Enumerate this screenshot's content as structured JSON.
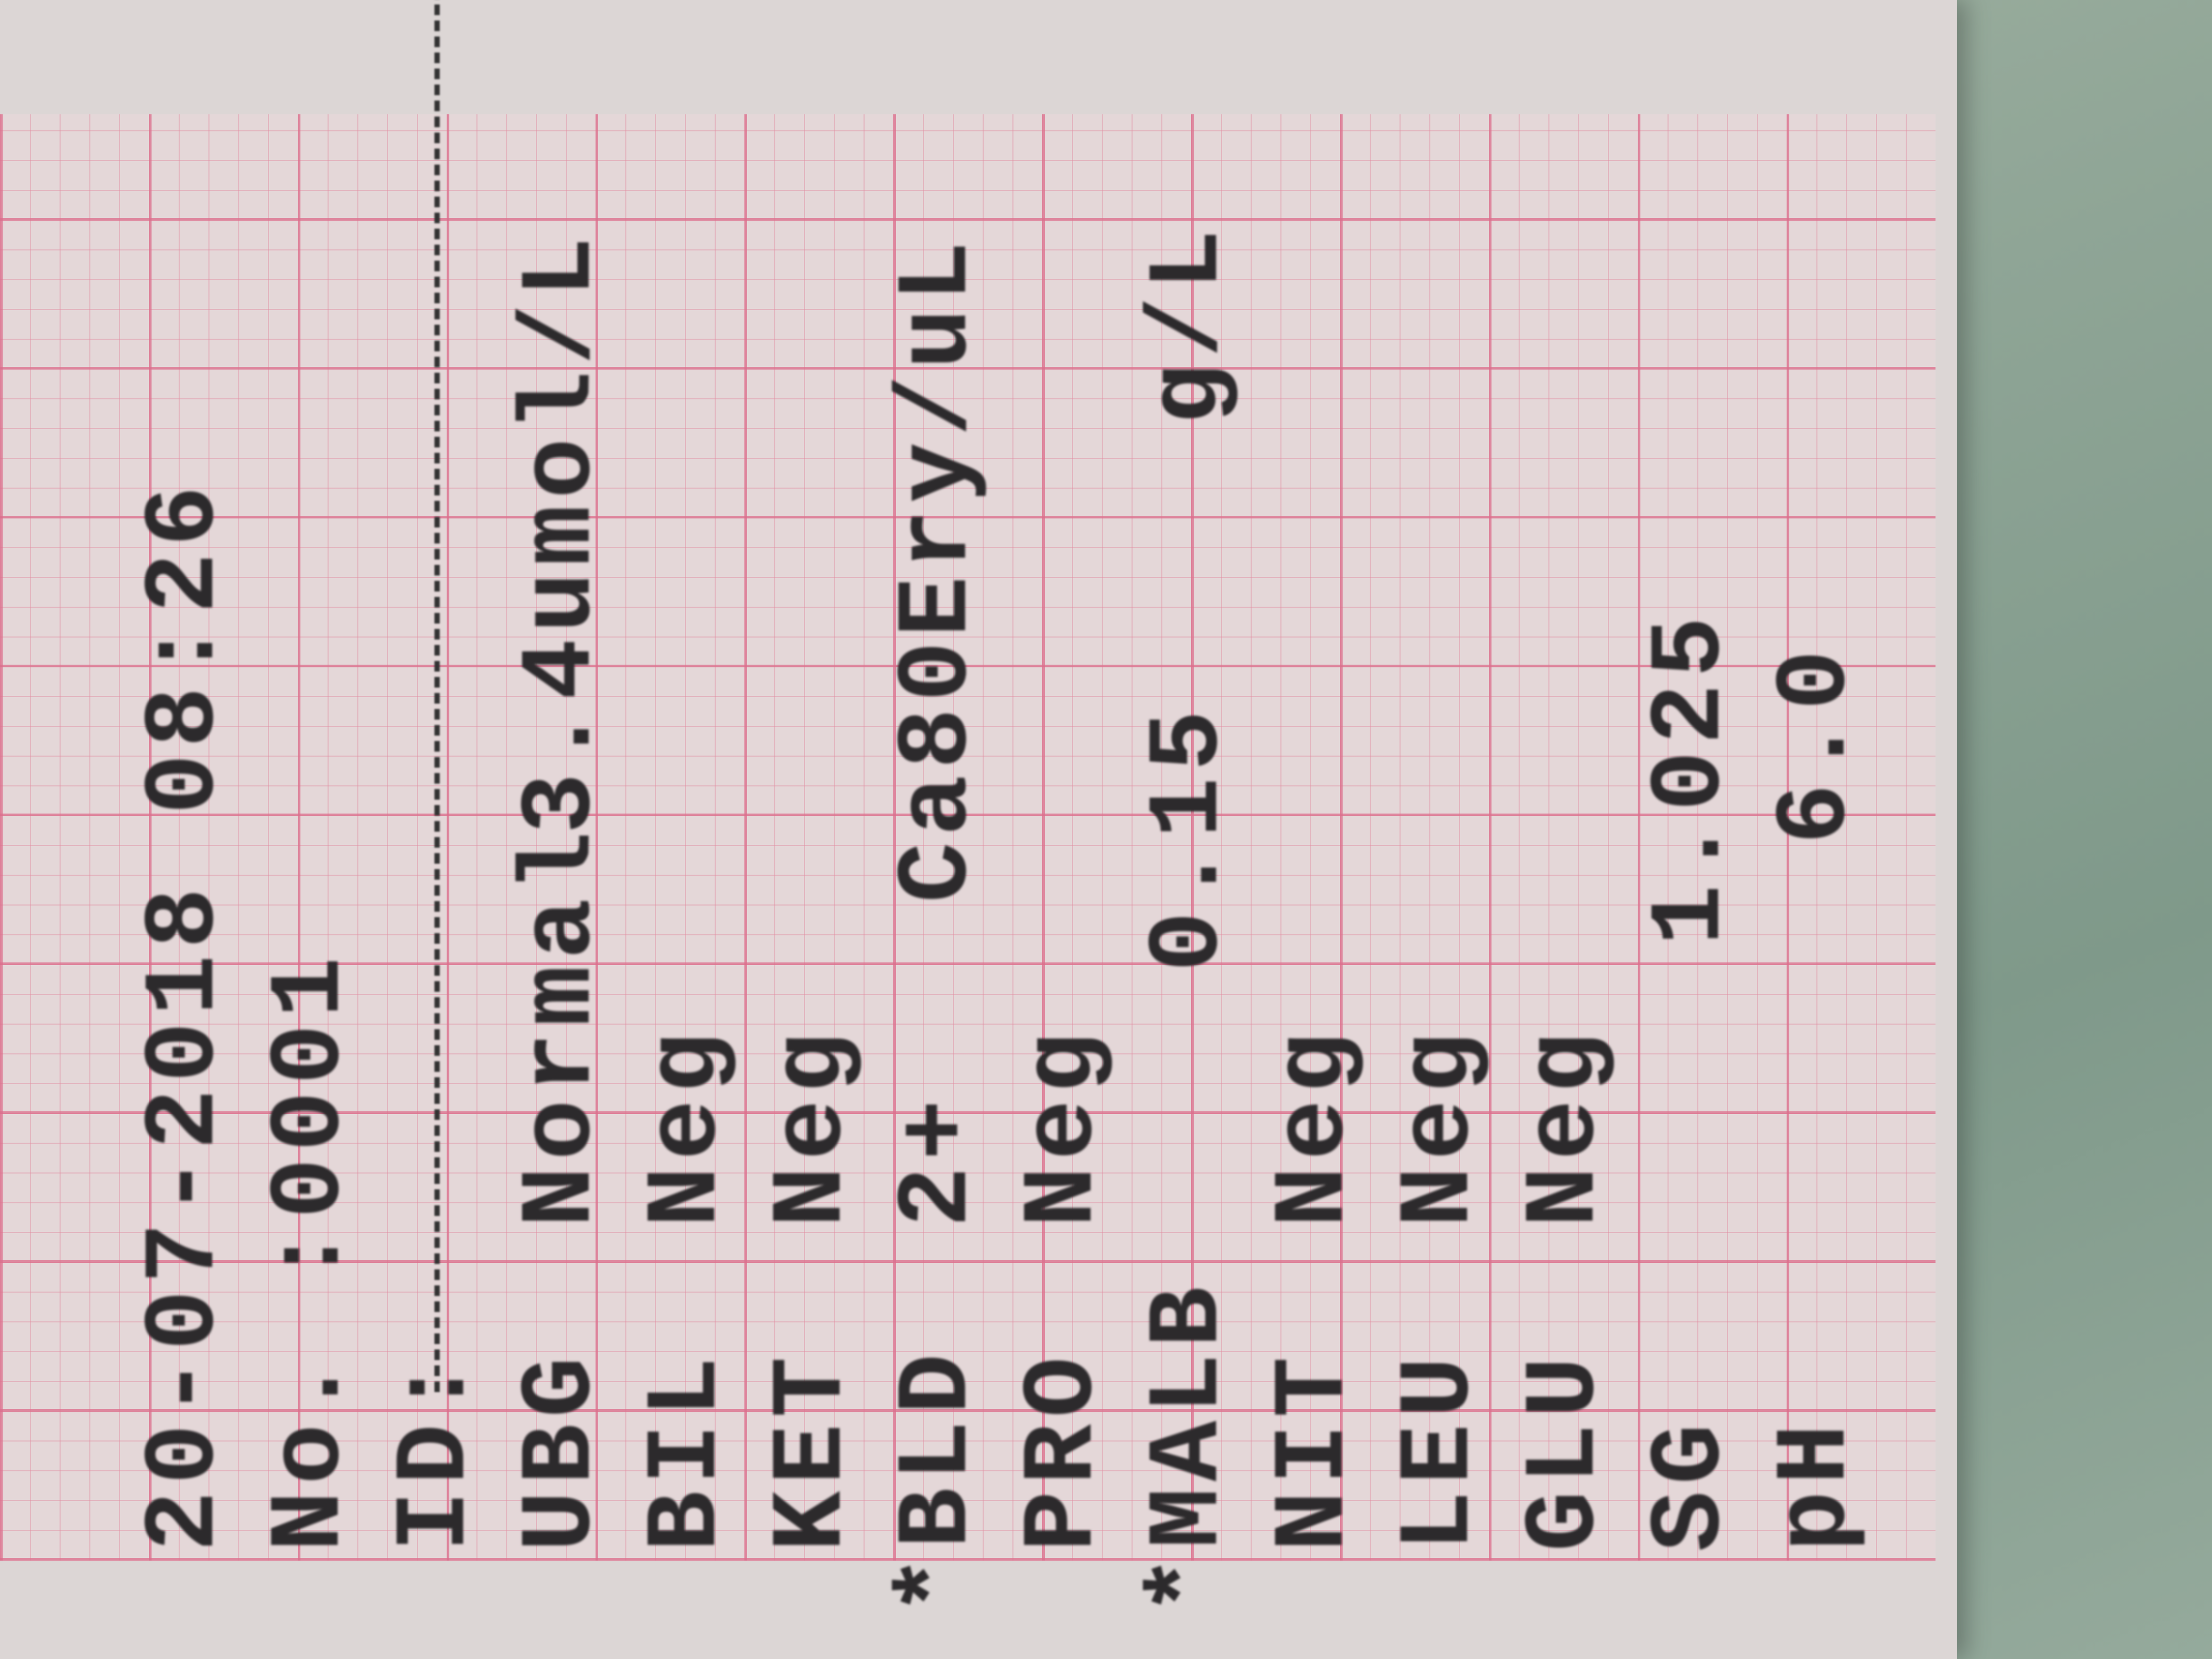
{
  "header": {
    "datetime": "20-07-2018 08:26",
    "number_label": "No.",
    "number_value": ":0001",
    "id_label": "ID:"
  },
  "results": [
    {
      "label": "UBG",
      "value": "Normal",
      "extra": "3.4umol/L",
      "unit": ""
    },
    {
      "label": "BIL",
      "value": "Neg",
      "extra": "",
      "unit": ""
    },
    {
      "label": "KET",
      "value": "Neg",
      "extra": "",
      "unit": ""
    },
    {
      "label": "*BLD",
      "value": "2+",
      "extra": "Ca80",
      "unit": "Ery/uL"
    },
    {
      "label": "PRO",
      "value": "Neg",
      "extra": "",
      "unit": ""
    },
    {
      "label": "*MALB",
      "value": "",
      "extra": "0.15",
      "unit": "g/L"
    },
    {
      "label": "NIT",
      "value": "Neg",
      "extra": "",
      "unit": ""
    },
    {
      "label": "LEU",
      "value": "Neg",
      "extra": "",
      "unit": ""
    },
    {
      "label": "GLU",
      "value": "Neg",
      "extra": "",
      "unit": ""
    },
    {
      "label": "SG",
      "value": "",
      "extra": "1.025",
      "unit": ""
    },
    {
      "label": "pH",
      "value": "",
      "extra": "6.0",
      "unit": ""
    }
  ],
  "colors": {
    "paper": "#e4d7d8",
    "grid": "#dc6e8c",
    "ink": "#2c2a2c",
    "background": "#8fa596"
  }
}
